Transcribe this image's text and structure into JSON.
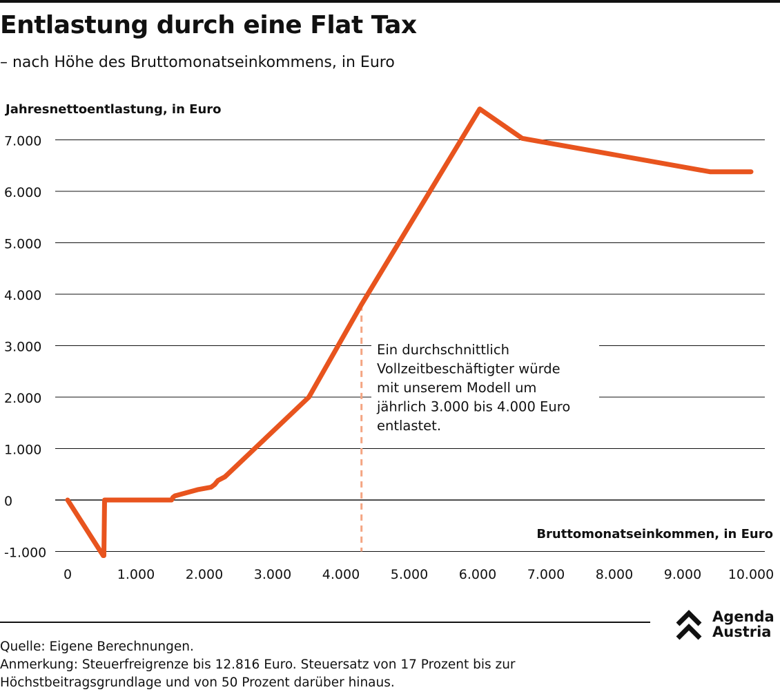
{
  "header": {
    "title": "Entlastung durch eine Flat Tax",
    "subtitle": "– nach Höhe des Bruttomonatseinkommens, in Euro"
  },
  "chart_data": {
    "type": "line",
    "ylabel": "Jahresnettoentlastung, in Euro",
    "xlabel": "Bruttomonatseinkommen, in Euro",
    "xlim": [
      0,
      10000
    ],
    "ylim": [
      -1000,
      7000
    ],
    "xticks": [
      "0",
      "1.000",
      "2.000",
      "3.000",
      "4.000",
      "5.000",
      "6.000",
      "7.000",
      "8.000",
      "9.000",
      "10.000"
    ],
    "yticks": [
      "-1.000",
      "0",
      "1.000",
      "2.000",
      "3.000",
      "4.000",
      "5.000",
      "6.000",
      "7.000"
    ],
    "grid": true,
    "series_color": "#e8541e",
    "series": [
      {
        "x": [
          0,
          520,
          530,
          540,
          1520,
          1540,
          1570,
          1900,
          2100,
          2150,
          2200,
          2300,
          2340,
          3530,
          4300,
          6030,
          6650,
          9400,
          10000
        ],
        "y": [
          0,
          -1080,
          -1080,
          0,
          0,
          50,
          80,
          200,
          250,
          300,
          380,
          450,
          500,
          2000,
          3800,
          7600,
          7030,
          6380,
          6380
        ]
      }
    ],
    "marker": {
      "x": 4300,
      "color": "#f4a582"
    },
    "annotation": [
      "Ein durchschnittlich",
      "Vollzeitbeschäftigter würde",
      "mit unserem Modell um",
      "jährlich 3.000 bis 4.000 Euro",
      "entlastet."
    ]
  },
  "footer": {
    "source": "Quelle: Eigene Berechnungen.",
    "note_line1": "Anmerkung: Steuerfreigrenze bis 12.816 Euro. Steuersatz von 17 Prozent bis zur",
    "note_line2": "Höchstbeitragsgrundlage und von 50 Prozent darüber hinaus."
  },
  "logo": {
    "line1": "Agenda",
    "line2": "Austria",
    "icon": "double-chevron-up-icon"
  }
}
